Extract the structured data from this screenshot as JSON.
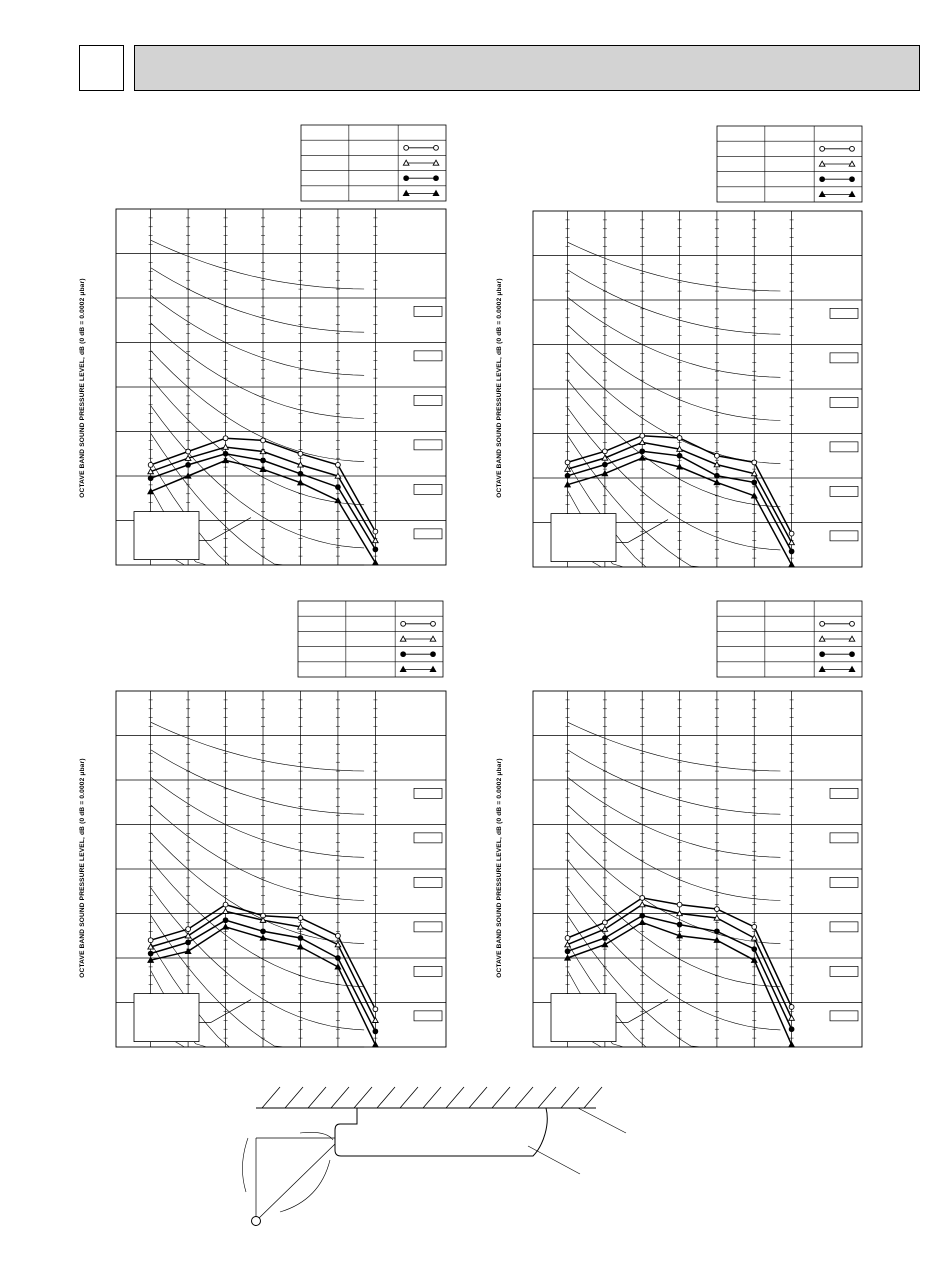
{
  "page": {
    "header_number": "",
    "header_title": ""
  },
  "chart_data": [
    {
      "type": "line",
      "ylabel": "OCTAVE BAND SOUND PRESSURE LEVEL, dB (0 dB = 0.0002 μbar)",
      "legend": [
        "open-circle",
        "open-triangle",
        "filled-circle",
        "filled-triangle"
      ],
      "x": [
        1,
        2,
        3,
        4,
        5,
        6,
        7
      ],
      "ylim": [
        0,
        8
      ],
      "series": [
        {
          "marker": "open-circle",
          "values": [
            2.25,
            2.55,
            2.85,
            2.8,
            2.5,
            2.25,
            0.75
          ]
        },
        {
          "marker": "open-triangle",
          "values": [
            2.1,
            2.4,
            2.65,
            2.55,
            2.25,
            2.0,
            0.55
          ]
        },
        {
          "marker": "filled-circle",
          "values": [
            1.95,
            2.25,
            2.5,
            2.35,
            2.05,
            1.75,
            0.35
          ]
        },
        {
          "marker": "filled-triangle",
          "values": [
            1.65,
            2.0,
            2.35,
            2.15,
            1.85,
            1.45,
            0.05
          ]
        }
      ]
    },
    {
      "type": "line",
      "ylabel": "OCTAVE BAND SOUND PRESSURE LEVEL, dB (0 dB = 0.0002 μbar)",
      "legend": [
        "open-circle",
        "open-triangle",
        "filled-circle",
        "filled-triangle"
      ],
      "x": [
        1,
        2,
        3,
        4,
        5,
        6,
        7
      ],
      "ylim": [
        0,
        8
      ],
      "series": [
        {
          "marker": "open-circle",
          "values": [
            2.35,
            2.6,
            2.95,
            2.9,
            2.5,
            2.35,
            0.75
          ]
        },
        {
          "marker": "open-triangle",
          "values": [
            2.2,
            2.45,
            2.8,
            2.65,
            2.3,
            2.1,
            0.55
          ]
        },
        {
          "marker": "filled-circle",
          "values": [
            2.05,
            2.3,
            2.6,
            2.5,
            2.05,
            1.9,
            0.35
          ]
        },
        {
          "marker": "filled-triangle",
          "values": [
            1.85,
            2.1,
            2.45,
            2.25,
            1.9,
            1.6,
            0.05
          ]
        }
      ]
    },
    {
      "type": "line",
      "ylabel": "OCTAVE BAND SOUND PRESSURE LEVEL, dB (0 dB = 0.0002 μbar)",
      "legend": [
        "open-circle",
        "open-triangle",
        "filled-circle",
        "filled-triangle"
      ],
      "x": [
        1,
        2,
        3,
        4,
        5,
        6,
        7
      ],
      "ylim": [
        0,
        8
      ],
      "series": [
        {
          "marker": "open-circle",
          "values": [
            2.4,
            2.65,
            3.2,
            2.95,
            2.9,
            2.5,
            0.85
          ]
        },
        {
          "marker": "open-triangle",
          "values": [
            2.25,
            2.5,
            3.05,
            2.85,
            2.7,
            2.3,
            0.6
          ]
        },
        {
          "marker": "filled-circle",
          "values": [
            2.1,
            2.35,
            2.85,
            2.6,
            2.45,
            2.0,
            0.35
          ]
        },
        {
          "marker": "filled-triangle",
          "values": [
            1.95,
            2.15,
            2.7,
            2.45,
            2.25,
            1.8,
            0.05
          ]
        }
      ]
    },
    {
      "type": "line",
      "ylabel": "OCTAVE BAND SOUND PRESSURE LEVEL, dB (0 dB = 0.0002 μbar)",
      "legend": [
        "open-circle",
        "open-triangle",
        "filled-circle",
        "filled-triangle"
      ],
      "x": [
        1,
        2,
        3,
        4,
        5,
        6,
        7
      ],
      "ylim": [
        0,
        8
      ],
      "series": [
        {
          "marker": "open-circle",
          "values": [
            2.45,
            2.8,
            3.35,
            3.2,
            3.1,
            2.7,
            0.9
          ]
        },
        {
          "marker": "open-triangle",
          "values": [
            2.3,
            2.65,
            3.2,
            3.0,
            2.9,
            2.45,
            0.65
          ]
        },
        {
          "marker": "filled-circle",
          "values": [
            2.15,
            2.45,
            2.95,
            2.75,
            2.6,
            2.2,
            0.4
          ]
        },
        {
          "marker": "filled-triangle",
          "values": [
            2.0,
            2.3,
            2.8,
            2.5,
            2.4,
            1.95,
            0.05
          ]
        }
      ]
    }
  ]
}
